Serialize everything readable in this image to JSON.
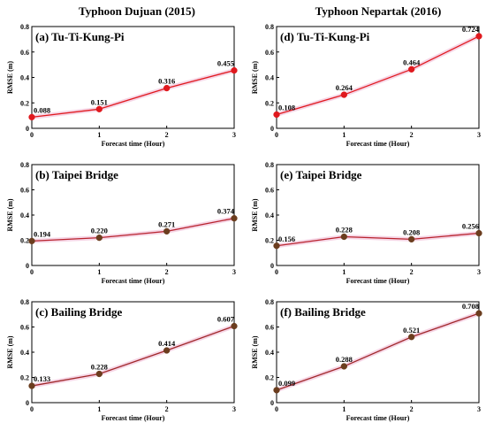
{
  "columns": [
    {
      "title": "Typhoon Dujuan (2015)"
    },
    {
      "title": "Typhoon Nepartak (2016)"
    }
  ],
  "chart_data": [
    {
      "type": "line",
      "title": "(a) Tu-Ti-Kung-Pi",
      "xlabel": "Forecast time (Hour)",
      "ylabel": "RMSE (m)",
      "x": [
        0,
        1,
        2,
        3
      ],
      "xticks": [
        "0",
        "1",
        "2",
        "3"
      ],
      "ylim": [
        0,
        0.8
      ],
      "yticks": [
        "0",
        "0.2",
        "0.4",
        "0.6",
        "0.8"
      ],
      "values": [
        0.088,
        0.151,
        0.316,
        0.455
      ],
      "labels": [
        "0.088",
        "0.151",
        "0.316",
        "0.455"
      ],
      "line_color": "#e0191e",
      "marker_color": "#e0191e"
    },
    {
      "type": "line",
      "title": "(d) Tu-Ti-Kung-Pi",
      "xlabel": "Forecast time (Hour)",
      "ylabel": "RMSE (m)",
      "x": [
        0,
        1,
        2,
        3
      ],
      "xticks": [
        "0",
        "1",
        "2",
        "3"
      ],
      "ylim": [
        0,
        0.8
      ],
      "yticks": [
        "0",
        "0.2",
        "0.4",
        "0.6",
        "0.8"
      ],
      "values": [
        0.108,
        0.264,
        0.464,
        0.724
      ],
      "labels": [
        "0.108",
        "0.264",
        "0.464",
        "0.724"
      ],
      "line_color": "#e0191e",
      "marker_color": "#e0191e"
    },
    {
      "type": "line",
      "title": "(b) Taipei Bridge",
      "xlabel": "Forecast time (Hour)",
      "ylabel": "RMSE (m)",
      "x": [
        0,
        1,
        2,
        3
      ],
      "xticks": [
        "0",
        "1",
        "2",
        "3"
      ],
      "ylim": [
        0,
        0.8
      ],
      "yticks": [
        "0",
        "0.2",
        "0.4",
        "0.6",
        "0.8"
      ],
      "values": [
        0.194,
        0.22,
        0.271,
        0.374
      ],
      "labels": [
        "0.194",
        "0.220",
        "0.271",
        "0.374"
      ],
      "line_color": "#b8242e",
      "marker_color": "#6b3d1e"
    },
    {
      "type": "line",
      "title": "(e) Taipei Bridge",
      "xlabel": "Forecast time (Hour)",
      "ylabel": "RMSE (m)",
      "x": [
        0,
        1,
        2,
        3
      ],
      "xticks": [
        "0",
        "1",
        "2",
        "3"
      ],
      "ylim": [
        0,
        0.8
      ],
      "yticks": [
        "0",
        "0.2",
        "0.4",
        "0.6",
        "0.8"
      ],
      "values": [
        0.156,
        0.228,
        0.208,
        0.256
      ],
      "labels": [
        "0.156",
        "0.228",
        "0.208",
        "0.256"
      ],
      "line_color": "#b8242e",
      "marker_color": "#6b3d1e"
    },
    {
      "type": "line",
      "title": "(c) Bailing Bridge",
      "xlabel": "Forecast time (Hour)",
      "ylabel": "RMSE (m)",
      "x": [
        0,
        1,
        2,
        3
      ],
      "xticks": [
        "0",
        "1",
        "2",
        "3"
      ],
      "ylim": [
        0,
        0.8
      ],
      "yticks": [
        "0",
        "0.2",
        "0.4",
        "0.6",
        "0.8"
      ],
      "values": [
        0.133,
        0.228,
        0.414,
        0.607
      ],
      "labels": [
        "0.133",
        "0.228",
        "0.414",
        "0.607"
      ],
      "line_color": "#a0282a",
      "marker_color": "#6b3d1e"
    },
    {
      "type": "line",
      "title": "(f) Bailing Bridge",
      "xlabel": "Forecast time (Hour)",
      "ylabel": "RMSE (m)",
      "x": [
        0,
        1,
        2,
        3
      ],
      "xticks": [
        "0",
        "1",
        "2",
        "3"
      ],
      "ylim": [
        0,
        0.8
      ],
      "yticks": [
        "0",
        "0.2",
        "0.4",
        "0.6",
        "0.8"
      ],
      "values": [
        0.099,
        0.288,
        0.521,
        0.708
      ],
      "labels": [
        "0.099",
        "0.288",
        "0.521",
        "0.708"
      ],
      "line_color": "#a0282a",
      "marker_color": "#6b3d1e"
    }
  ]
}
